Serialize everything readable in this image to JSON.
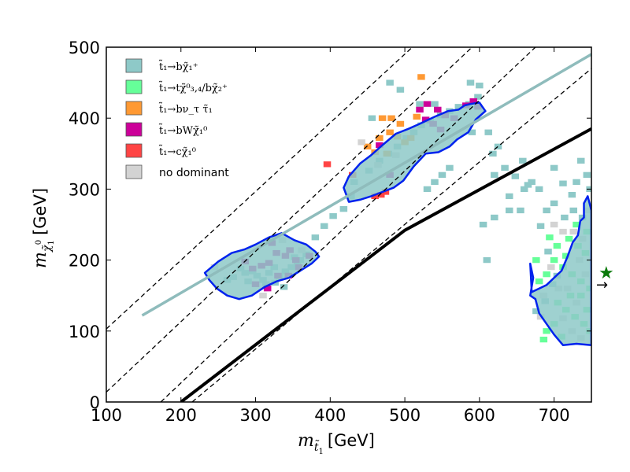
{
  "chart_data": {
    "type": "scatter",
    "xlabel": {
      "main": "m",
      "sub": "t̃",
      "subsub": "1",
      "unit": "[GeV]"
    },
    "ylabel": {
      "main": "m",
      "sub": "χ̃",
      "subsub": "1",
      "sup": "0",
      "unit": "[GeV]"
    },
    "xlim": [
      100,
      750
    ],
    "ylim": [
      0,
      500
    ],
    "x_ticks": [
      "100",
      "200",
      "300",
      "400",
      "500",
      "600",
      "700"
    ],
    "y_ticks": [
      "0",
      "100",
      "200",
      "300",
      "400",
      "500"
    ],
    "grid": false,
    "legend_position": "top-left",
    "colors": {
      "teal": "#8ec9c8",
      "green": "#66ff99",
      "orange": "#ff9933",
      "magenta": "#cc0099",
      "red": "#ff4444",
      "gray": "#d3d3d3",
      "contour": "#0022ee",
      "fit_line": "#8fbcbc",
      "kinematic": "#000000",
      "marker_star": "#0a7a0a"
    },
    "legend": [
      {
        "color": "#8ec9c8",
        "label": "t̃₁→bχ̃₁⁺"
      },
      {
        "color": "#66ff99",
        "label": "t̃₁→tχ̃⁰₃,₄/bχ̃₂⁺"
      },
      {
        "color": "#ff9933",
        "label": "t̃₁→bν_τ τ̃₁"
      },
      {
        "color": "#cc0099",
        "label": "t̃₁→bWχ̃₁⁰"
      },
      {
        "color": "#ff4444",
        "label": "t̃₁→cχ̃₁⁰"
      },
      {
        "color": "#d3d3d3",
        "label": "no dominant"
      }
    ],
    "lines": [
      {
        "name": "",
        "style": "solid",
        "color": "#8fbcbc",
        "x": [
          148,
          750
        ],
        "y": [
          122,
          490
        ]
      },
      {
        "name": "",
        "style": "solid",
        "color": "#000000",
        "x": [
          200,
          500,
          750
        ],
        "y": [
          0,
          242,
          385
        ]
      },
      {
        "name": "",
        "style": "dashed",
        "color": "#000000",
        "x": [
          100,
          510
        ],
        "y": [
          103,
          500
        ]
      },
      {
        "name": "",
        "style": "dashed",
        "color": "#000000",
        "x": [
          100,
          590
        ],
        "y": [
          14,
          500
        ]
      },
      {
        "name": "",
        "style": "dashed",
        "color": "#000000",
        "x": [
          173,
          675
        ],
        "y": [
          0,
          500
        ]
      },
      {
        "name": "",
        "style": "dashed",
        "color": "#000000",
        "x": [
          215,
          750
        ],
        "y": [
          0,
          470
        ]
      }
    ],
    "contours": [
      {
        "x": [
          232,
          250,
          268,
          285,
          300,
          318,
          335,
          352,
          368,
          380,
          385,
          375,
          360,
          345,
          328,
          312,
          295,
          278,
          262,
          248,
          238,
          232
        ],
        "y": [
          182,
          198,
          210,
          215,
          222,
          232,
          238,
          228,
          222,
          212,
          205,
          195,
          185,
          175,
          170,
          162,
          150,
          145,
          150,
          160,
          172,
          182
        ]
      },
      {
        "x": [
          418,
          425,
          440,
          455,
          470,
          488,
          505,
          520,
          540,
          558,
          572,
          580,
          588,
          600,
          608,
          595,
          585,
          570,
          560,
          545,
          528,
          512,
          498,
          485,
          470,
          455,
          440,
          425,
          418
        ],
        "y": [
          302,
          318,
          336,
          348,
          362,
          378,
          385,
          392,
          402,
          410,
          412,
          418,
          420,
          422,
          410,
          398,
          380,
          370,
          360,
          352,
          350,
          332,
          312,
          302,
          296,
          290,
          285,
          282,
          302
        ]
      },
      {
        "x": [
          670,
          690,
          700,
          710,
          718,
          725,
          732,
          735,
          740,
          740,
          745,
          750,
          750,
          730,
          712,
          700,
          690,
          680,
          675,
          668,
          672,
          668,
          670
        ],
        "y": [
          155,
          165,
          175,
          185,
          205,
          225,
          235,
          255,
          260,
          280,
          290,
          270,
          80,
          82,
          80,
          95,
          110,
          125,
          145,
          150,
          175,
          195,
          155
        ]
      }
    ],
    "cells": [
      {
        "cls": "teal",
        "pts": [
          [
            302,
            178
          ],
          [
            310,
            172
          ],
          [
            318,
            182
          ],
          [
            325,
            190
          ],
          [
            332,
            176
          ],
          [
            340,
            184
          ],
          [
            348,
            190
          ],
          [
            356,
            194
          ],
          [
            270,
            176
          ],
          [
            280,
            188
          ],
          [
            290,
            170
          ],
          [
            296,
            184
          ],
          [
            360,
            200
          ],
          [
            368,
            208
          ],
          [
            352,
            204
          ],
          [
            326,
            168
          ],
          [
            338,
            162
          ],
          [
            314,
            166
          ],
          [
            286,
            182
          ],
          [
            262,
            172
          ]
        ]
      },
      {
        "cls": "magenta",
        "pts": [
          [
            296,
            188
          ],
          [
            308,
            192
          ],
          [
            318,
            196
          ],
          [
            328,
            210
          ],
          [
            340,
            206
          ],
          [
            354,
            200
          ],
          [
            372,
            206
          ],
          [
            316,
            160
          ],
          [
            330,
            178
          ],
          [
            344,
            178
          ],
          [
            358,
            190
          ],
          [
            300,
            166
          ],
          [
            286,
            198
          ],
          [
            322,
            224
          ],
          [
            346,
            214
          ]
        ]
      },
      {
        "cls": "gray",
        "pts": [
          [
            336,
            228
          ],
          [
            362,
            214
          ],
          [
            245,
            190
          ],
          [
            310,
            150
          ]
        ]
      },
      {
        "cls": "teal",
        "pts": [
          [
            380,
            232
          ],
          [
            392,
            248
          ],
          [
            404,
            262
          ],
          [
            418,
            272
          ],
          [
            428,
            290
          ],
          [
            432,
            310
          ],
          [
            452,
            326
          ],
          [
            466,
            340
          ],
          [
            478,
            350
          ],
          [
            490,
            360
          ],
          [
            502,
            372
          ],
          [
            512,
            380
          ],
          [
            522,
            390
          ],
          [
            534,
            396
          ],
          [
            548,
            404
          ],
          [
            560,
            410
          ],
          [
            572,
            416
          ],
          [
            586,
            420
          ],
          [
            598,
            430
          ],
          [
            588,
            450
          ],
          [
            600,
            446
          ],
          [
            618,
            350
          ],
          [
            634,
            330
          ],
          [
            648,
            318
          ],
          [
            658,
            340
          ],
          [
            665,
            306
          ],
          [
            612,
            380
          ],
          [
            625,
            360
          ],
          [
            560,
            330
          ],
          [
            550,
            320
          ],
          [
            590,
            380
          ],
          [
            540,
            310
          ],
          [
            530,
            300
          ],
          [
            480,
            450
          ],
          [
            494,
            440
          ],
          [
            456,
            400
          ],
          [
            520,
            420
          ],
          [
            540,
            420
          ],
          [
            620,
            260
          ],
          [
            640,
            270
          ],
          [
            610,
            200
          ],
          [
            605,
            250
          ],
          [
            655,
            270
          ]
        ]
      },
      {
        "cls": "orange",
        "pts": [
          [
            450,
            360
          ],
          [
            466,
            372
          ],
          [
            480,
            380
          ],
          [
            490,
            374
          ],
          [
            500,
            366
          ],
          [
            508,
            372
          ],
          [
            482,
            400
          ],
          [
            516,
            402
          ],
          [
            522,
            458
          ],
          [
            494,
            392
          ],
          [
            470,
            400
          ],
          [
            460,
            352
          ],
          [
            476,
            350
          ]
        ]
      },
      {
        "cls": "magenta",
        "pts": [
          [
            520,
            412
          ],
          [
            530,
            420
          ],
          [
            544,
            412
          ],
          [
            554,
            404
          ],
          [
            566,
            400
          ],
          [
            582,
            418
          ],
          [
            592,
            424
          ],
          [
            598,
            416
          ],
          [
            528,
            398
          ],
          [
            538,
            392
          ],
          [
            548,
            384
          ],
          [
            480,
            320
          ],
          [
            466,
            362
          ]
        ]
      },
      {
        "cls": "red",
        "pts": [
          [
            396,
            335
          ],
          [
            460,
            290
          ],
          [
            468,
            292
          ],
          [
            474,
            296
          ],
          [
            430,
            320
          ]
        ]
      },
      {
        "cls": "gray",
        "pts": [
          [
            442,
            366
          ],
          [
            464,
            334
          ],
          [
            488,
            348
          ]
        ]
      },
      {
        "cls": "green",
        "pts": [
          [
            720,
            230
          ],
          [
            732,
            220
          ],
          [
            742,
            210
          ],
          [
            700,
            200
          ],
          [
            712,
            190
          ],
          [
            724,
            180
          ],
          [
            736,
            170
          ],
          [
            748,
            160
          ],
          [
            705,
            140
          ],
          [
            716,
            130
          ],
          [
            728,
            120
          ],
          [
            740,
            110
          ],
          [
            748,
            100
          ],
          [
            700,
            110
          ],
          [
            690,
            100
          ],
          [
            686,
            88
          ],
          [
            710,
            92
          ],
          [
            744,
            130
          ],
          [
            736,
            150
          ],
          [
            722,
            150
          ],
          [
            680,
            170
          ],
          [
            690,
            180
          ],
          [
            676,
            200
          ],
          [
            694,
            232
          ],
          [
            704,
            220
          ],
          [
            716,
            206
          ],
          [
            744,
            240
          ],
          [
            730,
            250
          ]
        ]
      },
      {
        "cls": "gray",
        "pts": [
          [
            700,
            250
          ],
          [
            712,
            240
          ],
          [
            726,
            240
          ],
          [
            738,
            230
          ],
          [
            706,
            160
          ],
          [
            718,
            160
          ],
          [
            730,
            140
          ],
          [
            742,
            180
          ],
          [
            696,
            190
          ],
          [
            712,
            118
          ],
          [
            724,
            100
          ],
          [
            736,
            90
          ],
          [
            686,
            150
          ],
          [
            682,
            120
          ],
          [
            746,
            270
          ],
          [
            734,
            200
          ]
        ]
      },
      {
        "cls": "teal",
        "pts": [
          [
            690,
            270
          ],
          [
            700,
            280
          ],
          [
            714,
            260
          ],
          [
            726,
            270
          ],
          [
            738,
            260
          ],
          [
            748,
            300
          ],
          [
            744,
            320
          ],
          [
            736,
            340
          ],
          [
            724,
            292
          ],
          [
            682,
            248
          ],
          [
            692,
            212
          ],
          [
            704,
            178
          ],
          [
            676,
            128
          ],
          [
            688,
            142
          ],
          [
            698,
            166
          ],
          [
            730,
            310
          ],
          [
            620,
            320
          ],
          [
            640,
            290
          ],
          [
            660,
            300
          ],
          [
            670,
            310
          ],
          [
            700,
            330
          ],
          [
            712,
            308
          ],
          [
            680,
            300
          ]
        ]
      }
    ]
  },
  "side_marker": {
    "star": "★",
    "arrow": "→"
  }
}
